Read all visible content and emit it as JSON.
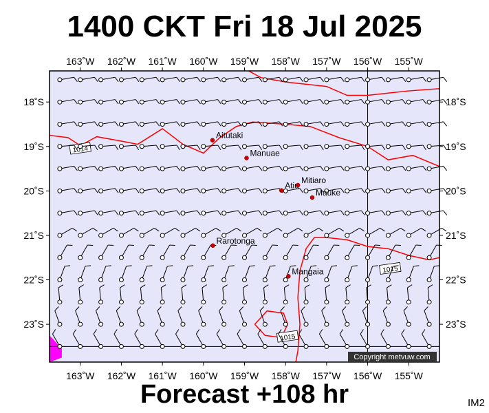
{
  "title": "1400 CKT Fri 18 Jul 2025",
  "subtitle": "Forecast +108 hr",
  "image_code": "IM2",
  "copyright": "Copyright metvuw.com",
  "colors": {
    "ocean": "#e6e6fa",
    "isobar": "#ff0000",
    "land": "#ff00ff",
    "island_marker": "#cc0000",
    "barb": "#000000"
  },
  "map": {
    "lon_range": [
      -163.75,
      -154.25
    ],
    "lat_range": [
      -23.85,
      -17.3
    ],
    "lon_ticks": [
      {
        "value": -163,
        "label": "163˚W"
      },
      {
        "value": -162,
        "label": "162˚W"
      },
      {
        "value": -161,
        "label": "161˚W"
      },
      {
        "value": -160,
        "label": "160˚W"
      },
      {
        "value": -159,
        "label": "159˚W"
      },
      {
        "value": -158,
        "label": "158˚W"
      },
      {
        "value": -157,
        "label": "157˚W"
      },
      {
        "value": -156,
        "label": "156˚W"
      },
      {
        "value": -155,
        "label": "155˚W"
      }
    ],
    "lat_ticks": [
      {
        "value": -18,
        "label": "18˚S"
      },
      {
        "value": -19,
        "label": "19˚S"
      },
      {
        "value": -20,
        "label": "20˚S"
      },
      {
        "value": -21,
        "label": "21˚S"
      },
      {
        "value": -22,
        "label": "22˚S"
      },
      {
        "value": -23,
        "label": "23˚S"
      }
    ],
    "grid_lines": {
      "meridian": -156,
      "parallel": -23.5
    }
  },
  "places": [
    {
      "name": "Aitutaki",
      "lon": -159.78,
      "lat": -18.86
    },
    {
      "name": "Manuae",
      "lon": -158.95,
      "lat": -19.26
    },
    {
      "name": "Atiu",
      "lon": -158.1,
      "lat": -19.99
    },
    {
      "name": "Mitiaro",
      "lon": -157.7,
      "lat": -19.87
    },
    {
      "name": "Mauke",
      "lon": -157.35,
      "lat": -20.15
    },
    {
      "name": "Rarotonga",
      "lon": -159.77,
      "lat": -21.23
    },
    {
      "name": "Mangaia",
      "lon": -157.93,
      "lat": -21.92
    }
  ],
  "isobars": [
    {
      "label": "1014",
      "label_at": {
        "lon": -163.0,
        "lat": -19.05
      },
      "points": [
        [
          -163.75,
          -18.75
        ],
        [
          -163.3,
          -18.8
        ],
        [
          -163.0,
          -18.98
        ],
        [
          -162.6,
          -18.78
        ],
        [
          -162.0,
          -18.88
        ],
        [
          -161.6,
          -18.95
        ],
        [
          -161.0,
          -18.6
        ],
        [
          -160.5,
          -18.95
        ],
        [
          -160.0,
          -19.15
        ],
        [
          -159.6,
          -18.8
        ],
        [
          -159.2,
          -18.55
        ],
        [
          -158.8,
          -18.45
        ],
        [
          -158.0,
          -18.5
        ],
        [
          -157.4,
          -18.55
        ],
        [
          -156.7,
          -18.8
        ],
        [
          -156.0,
          -19.0
        ],
        [
          -155.5,
          -19.3
        ],
        [
          -154.9,
          -19.2
        ],
        [
          -154.25,
          -19.45
        ]
      ]
    },
    {
      "label": "1015",
      "label_at": {
        "lon": -155.45,
        "lat": -21.75
      },
      "points": [
        [
          -154.25,
          -21.5
        ],
        [
          -154.5,
          -21.55
        ],
        [
          -155.0,
          -21.45
        ],
        [
          -155.5,
          -21.3
        ],
        [
          -156.0,
          -21.25
        ],
        [
          -156.5,
          -21.1
        ],
        [
          -157.0,
          -21.05
        ],
        [
          -157.3,
          -21.05
        ],
        [
          -157.5,
          -21.3
        ],
        [
          -157.65,
          -21.8
        ],
        [
          -157.7,
          -22.4
        ],
        [
          -157.65,
          -23.0
        ],
        [
          -157.7,
          -23.6
        ],
        [
          -157.75,
          -23.85
        ]
      ]
    },
    {
      "label": "1015",
      "label_at": {
        "lon": -157.95,
        "lat": -23.28
      },
      "points": [
        [
          -158.75,
          -23.0
        ],
        [
          -158.45,
          -22.7
        ],
        [
          -158.05,
          -22.75
        ],
        [
          -157.95,
          -23.0
        ],
        [
          -158.1,
          -23.3
        ],
        [
          -158.5,
          -23.25
        ],
        [
          -158.75,
          -23.0
        ]
      ]
    },
    {
      "label": "",
      "label_at": null,
      "points": [
        [
          -158.9,
          -17.3
        ],
        [
          -158.6,
          -17.45
        ],
        [
          -158.0,
          -17.55
        ],
        [
          -157.5,
          -17.6
        ],
        [
          -157.0,
          -17.65
        ],
        [
          -156.5,
          -17.85
        ],
        [
          -156.0,
          -17.85
        ],
        [
          -155.5,
          -17.8
        ],
        [
          -155.0,
          -17.75
        ],
        [
          -154.25,
          -17.7
        ]
      ]
    }
  ],
  "land_polygons": [
    {
      "name": "",
      "points": [
        [
          -163.75,
          -23.25
        ],
        [
          -163.45,
          -23.55
        ],
        [
          -163.45,
          -23.75
        ],
        [
          -163.75,
          -23.85
        ]
      ]
    }
  ],
  "wind_field": {
    "lons": [
      -163.5,
      -163.0,
      -162.5,
      -162.0,
      -161.5,
      -161.0,
      -160.5,
      -160.0,
      -159.5,
      -159.0,
      -158.5,
      -158.0,
      -157.5,
      -157.0,
      -156.5,
      -156.0,
      -155.5,
      -155.0,
      -154.5
    ],
    "lats": [
      -17.5,
      -18.0,
      -18.5,
      -19.0,
      -19.5,
      -20.0,
      -20.5,
      -21.0,
      -21.5,
      -22.0,
      -22.5,
      -23.0,
      -23.5
    ],
    "row_directions_deg": [
      80,
      80,
      80,
      85,
      80,
      80,
      80,
      60,
      30,
      20,
      355,
      340,
      330
    ],
    "speed_knots": 10
  }
}
